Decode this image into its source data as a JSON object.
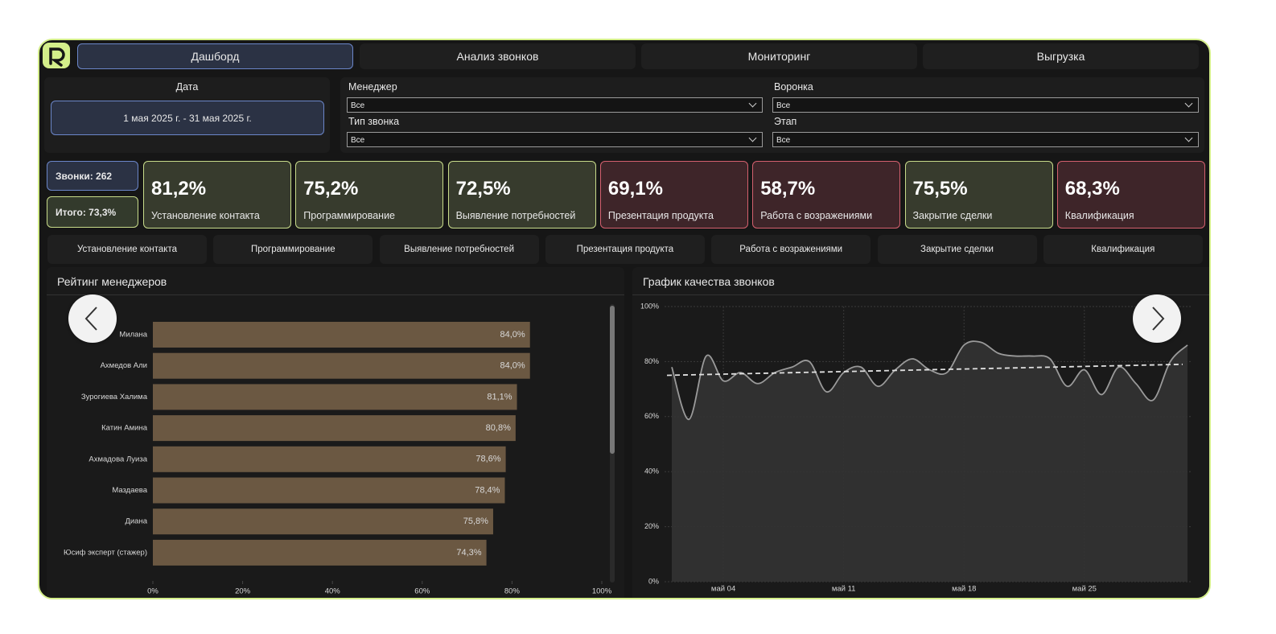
{
  "tabs": [
    "Дашборд",
    "Анализ звонков",
    "Мониторинг",
    "Выгрузка"
  ],
  "filters": {
    "date_label": "Дата",
    "date_value": "1 мая 2025 г. - 31 мая 2025 г.",
    "fields": [
      {
        "label": "Менеджер",
        "value": "Все"
      },
      {
        "label": "Воронка",
        "value": "Все"
      },
      {
        "label": "Тип звонка",
        "value": "Все"
      },
      {
        "label": "Этап",
        "value": "Все"
      }
    ]
  },
  "summary": [
    "Звонки: 262",
    "Итого: 73,3%"
  ],
  "cards": [
    {
      "value": "81,2%",
      "label": "Установление контакта",
      "color": "#c8dc8a"
    },
    {
      "value": "75,2%",
      "label": "Программирование",
      "color": "#c8dc8a"
    },
    {
      "value": "72,5%",
      "label": "Выявление потребностей",
      "color": "#c8dc8a"
    },
    {
      "value": "69,1%",
      "label": "Презентация продукта",
      "color": "#d4606e"
    },
    {
      "value": "58,7%",
      "label": "Работа с возражениями",
      "color": "#d4606e"
    },
    {
      "value": "75,5%",
      "label": "Закрытие сделки",
      "color": "#c8dc8a"
    },
    {
      "value": "68,3%",
      "label": "Квалификация",
      "color": "#d4606e"
    }
  ],
  "stages": [
    "Установление контакта",
    "Программирование",
    "Выявление потребностей",
    "Презентация продукта",
    "Работа с возражениями",
    "Закрытие сделки",
    "Квалификация"
  ],
  "rating_chart": {
    "type": "bar",
    "title": "Рейтинг менеджеров",
    "categories": [
      "Милана",
      "Ахмедов Али",
      "Зурогиева Халима",
      "Катин Амина",
      "Ахмадова Луиза",
      "Маздаева",
      "Диана",
      "Юсиф эксперт (стажер)"
    ],
    "values": [
      84.0,
      84.0,
      81.1,
      80.8,
      78.6,
      78.4,
      75.8,
      74.3
    ],
    "value_labels": [
      "84,0%",
      "84,0%",
      "81,1%",
      "80,8%",
      "78,6%",
      "78,4%",
      "75,8%",
      "74,3%"
    ],
    "color": "#6b5842",
    "xlim": [
      0,
      100
    ],
    "xticks": [
      {
        "value": 0,
        "label": "0%"
      },
      {
        "value": 20,
        "label": "20%"
      },
      {
        "value": 40,
        "label": "40%"
      },
      {
        "value": 60,
        "label": "60%"
      },
      {
        "value": 80,
        "label": "80%"
      },
      {
        "value": 100,
        "label": "100%"
      }
    ]
  },
  "quality_chart": {
    "type": "area",
    "title": "График качества звонков",
    "categories": [
      null,
      null,
      null,
      "май 04",
      null,
      null,
      null,
      null,
      null,
      null,
      "май 11",
      null,
      null,
      null,
      null,
      null,
      null,
      "май 18",
      null,
      null,
      null,
      null,
      null,
      null,
      "май 25",
      null,
      null,
      null,
      null,
      null,
      null
    ],
    "values": [
      78,
      59,
      82,
      73,
      76,
      72,
      76,
      78,
      80,
      69,
      76,
      78,
      71,
      77,
      81,
      77,
      76,
      86,
      87,
      83,
      82,
      82,
      81,
      71,
      77,
      68,
      78,
      72,
      66,
      80,
      86
    ],
    "trend": [
      75,
      79
    ],
    "color": "#9a9a9a",
    "ylim": [
      0,
      100
    ],
    "yticks": [
      {
        "value": 0,
        "label": "0%"
      },
      {
        "value": 20,
        "label": "20%"
      },
      {
        "value": 40,
        "label": "40%"
      },
      {
        "value": 60,
        "label": "60%"
      },
      {
        "value": 80,
        "label": "80%"
      },
      {
        "value": 100,
        "label": "100%"
      }
    ],
    "grid": true
  }
}
